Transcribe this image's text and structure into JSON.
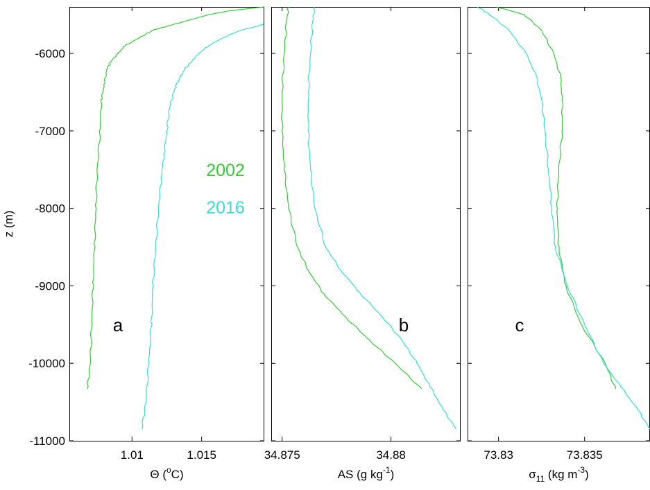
{
  "chart_data": {
    "type": "line",
    "ylabel": "z (m)",
    "ylim": [
      -11000,
      -5400
    ],
    "yticks": [
      -6000,
      -7000,
      -8000,
      -9000,
      -10000,
      -11000
    ],
    "ytick_labels": [
      "-6000",
      "-7000",
      "-8000",
      "-9000",
      "-10000",
      "-11000"
    ],
    "legend": {
      "placement": "inside-panel-a-right",
      "entries": [
        {
          "label": "2002",
          "color": "#33cc33"
        },
        {
          "label": "2016",
          "color": "#33dddd"
        }
      ]
    },
    "panels": [
      {
        "letter": "a",
        "xlabel_main": "Θ (",
        "xlabel_sup": "o",
        "xlabel_end": "C)",
        "xlim": [
          1.0055,
          1.0195
        ],
        "xticks": [
          1.01,
          1.015
        ],
        "xtick_labels": [
          "1.01",
          "1.015"
        ],
        "series": [
          {
            "name": "2002",
            "color": "#33cc33",
            "z": [
              -5400,
              -5420,
              -5450,
              -5500,
              -5550,
              -5600,
              -5650,
              -5700,
              -5800,
              -5900,
              -6000,
              -6100,
              -6200,
              -6400,
              -6600,
              -7000,
              -7500,
              -8000,
              -8500,
              -9000,
              -9500,
              -10000,
              -10330
            ],
            "x": [
              1.0195,
              1.0185,
              1.017,
              1.0155,
              1.0145,
              1.0135,
              1.0125,
              1.0115,
              1.0105,
              1.0095,
              1.009,
              1.0085,
              1.0082,
              1.008,
              1.0078,
              1.0077,
              1.0075,
              1.0074,
              1.0073,
              1.0072,
              1.0071,
              1.007,
              1.0068
            ]
          },
          {
            "name": "2016",
            "color": "#33dddd",
            "z": [
              -5620,
              -5650,
              -5700,
              -5800,
              -5900,
              -6000,
              -6100,
              -6200,
              -6300,
              -6400,
              -6500,
              -6700,
              -7000,
              -7300,
              -7600,
              -8000,
              -8500,
              -9000,
              -9500,
              -10000,
              -10500,
              -10850
            ],
            "x": [
              1.0195,
              1.019,
              1.0178,
              1.0165,
              1.0155,
              1.0148,
              1.0143,
              1.0138,
              1.0135,
              1.0132,
              1.013,
              1.0127,
              1.0125,
              1.0123,
              1.0121,
              1.0119,
              1.0117,
              1.0115,
              1.0114,
              1.0112,
              1.011,
              1.0107
            ]
          }
        ]
      },
      {
        "letter": "b",
        "xlabel_main": "AS (g kg",
        "xlabel_sup": "-1",
        "xlabel_end": ")",
        "xlim": [
          34.8745,
          34.8832
        ],
        "xticks": [
          34.875,
          34.88
        ],
        "xtick_labels": [
          "34.875",
          "34.88"
        ],
        "series": [
          {
            "name": "2002",
            "color": "#33cc33",
            "z": [
              -5400,
              -5600,
              -6000,
              -6500,
              -7000,
              -7500,
              -8000,
              -8500,
              -8800,
              -9100,
              -9400,
              -9700,
              -10000,
              -10330
            ],
            "x": [
              34.8753,
              34.8752,
              34.8751,
              34.875,
              34.875,
              34.8751,
              34.8753,
              34.8757,
              34.8762,
              34.8769,
              34.8779,
              34.879,
              34.8802,
              34.8814
            ]
          },
          {
            "name": "2016",
            "color": "#33dddd",
            "z": [
              -5400,
              -5600,
              -6000,
              -6500,
              -7000,
              -7500,
              -8000,
              -8500,
              -8800,
              -9100,
              -9400,
              -9700,
              -10000,
              -10300,
              -10600,
              -10850
            ],
            "x": [
              34.8765,
              34.8764,
              34.8763,
              34.8762,
              34.8762,
              34.8763,
              34.8765,
              34.877,
              34.8777,
              34.8786,
              34.8796,
              34.8805,
              34.8812,
              34.8818,
              34.8824,
              34.883
            ]
          }
        ]
      },
      {
        "letter": "c",
        "xlabel_main": "σ",
        "xlabel_sub": "11",
        "xlabel_mid": " (kg m",
        "xlabel_sup": "-3",
        "xlabel_end": ")",
        "xlim": [
          73.8282,
          73.8388
        ],
        "xticks": [
          73.83,
          73.835
        ],
        "xtick_labels": [
          "73.83",
          "73.835"
        ],
        "series": [
          {
            "name": "2002",
            "color": "#33cc33",
            "z": [
              -5400,
              -5500,
              -5700,
              -6000,
              -6300,
              -6600,
              -7000,
              -7500,
              -8000,
              -8500,
              -9000,
              -9500,
              -10000,
              -10330
            ],
            "x": [
              73.8299,
              73.8315,
              73.8325,
              73.8332,
              73.8336,
              73.8337,
              73.8337,
              73.8335,
              73.8334,
              73.8335,
              73.8339,
              73.8348,
              73.8362,
              73.8368
            ]
          },
          {
            "name": "2016",
            "color": "#33dddd",
            "z": [
              -5400,
              -5500,
              -5700,
              -6000,
              -6300,
              -6600,
              -7000,
              -7500,
              -8000,
              -8500,
              -9000,
              -9500,
              -10000,
              -10300,
              -10600,
              -10850
            ],
            "x": [
              73.8288,
              73.8295,
              73.8306,
              73.8316,
              73.8322,
              73.8325,
              73.8327,
              73.8329,
              73.8331,
              73.8333,
              73.834,
              73.835,
              73.8361,
              73.8371,
              73.8381,
              73.8388
            ]
          }
        ]
      }
    ]
  }
}
